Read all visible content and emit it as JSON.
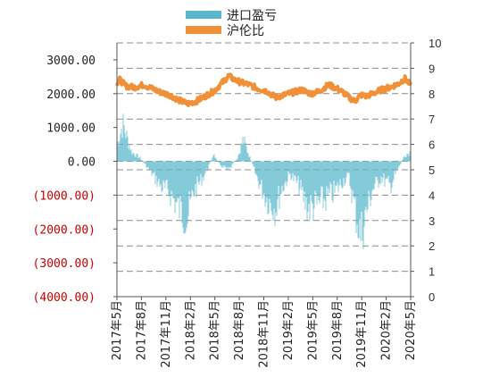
{
  "chart_data": {
    "type": "bar+line",
    "legend": [
      {
        "label": "进口盈亏",
        "color": "#5bb8cc",
        "kind": "bar"
      },
      {
        "label": "沪伦比",
        "color": "#f0913a",
        "kind": "line"
      }
    ],
    "left_axis": {
      "ticks": [
        {
          "value": 3000,
          "label": "3000.00",
          "color": "#222222"
        },
        {
          "value": 2000,
          "label": "2000.00",
          "color": "#222222"
        },
        {
          "value": 1000,
          "label": "1000.00",
          "color": "#222222"
        },
        {
          "value": 0,
          "label": "0.00",
          "color": "#222222"
        },
        {
          "value": -1000,
          "label": "(1000.00)",
          "color": "#cc0000"
        },
        {
          "value": -2000,
          "label": "(2000.00)",
          "color": "#cc0000"
        },
        {
          "value": -3000,
          "label": "(3000.00)",
          "color": "#cc0000"
        },
        {
          "value": -4000,
          "label": "(4000.00)",
          "color": "#cc0000"
        }
      ],
      "range": [
        -4000,
        3500
      ]
    },
    "right_axis": {
      "ticks": [
        "0",
        "1",
        "2",
        "3",
        "4",
        "5",
        "6",
        "7",
        "8",
        "9",
        "10"
      ],
      "range": [
        0,
        10
      ]
    },
    "x_ticks": [
      "2017年5月",
      "2017年8月",
      "2017年11月",
      "2018年2月",
      "2018年5月",
      "2018年8月",
      "2018年11月",
      "2019年2月",
      "2019年5月",
      "2019年8月",
      "2019年11月",
      "2020年2月",
      "2020年5月"
    ],
    "series": [
      {
        "name": "进口盈亏",
        "type": "bar",
        "color": "#5bb8cc",
        "anchors": [
          [
            0,
            500
          ],
          [
            0.02,
            1200
          ],
          [
            0.05,
            300
          ],
          [
            0.08,
            100
          ],
          [
            0.12,
            -400
          ],
          [
            0.15,
            -800
          ],
          [
            0.18,
            -1000
          ],
          [
            0.21,
            -1500
          ],
          [
            0.24,
            -1800
          ],
          [
            0.26,
            -1000
          ],
          [
            0.3,
            -400
          ],
          [
            0.33,
            200
          ],
          [
            0.35,
            -100
          ],
          [
            0.38,
            -300
          ],
          [
            0.41,
            100
          ],
          [
            0.43,
            700
          ],
          [
            0.45,
            200
          ],
          [
            0.48,
            -600
          ],
          [
            0.51,
            -1200
          ],
          [
            0.54,
            -1500
          ],
          [
            0.56,
            -900
          ],
          [
            0.59,
            -400
          ],
          [
            0.62,
            -800
          ],
          [
            0.65,
            -1500
          ],
          [
            0.68,
            -1400
          ],
          [
            0.71,
            -1200
          ],
          [
            0.74,
            -1000
          ],
          [
            0.77,
            -600
          ],
          [
            0.79,
            -500
          ],
          [
            0.81,
            -1500
          ],
          [
            0.83,
            -2400
          ],
          [
            0.85,
            -1600
          ],
          [
            0.87,
            -900
          ],
          [
            0.9,
            -500
          ],
          [
            0.93,
            -800
          ],
          [
            0.95,
            -400
          ],
          [
            0.98,
            200
          ],
          [
            1.0,
            300
          ]
        ]
      },
      {
        "name": "沪伦比",
        "type": "line",
        "color": "#f0913a",
        "anchors": [
          [
            0,
            8.4
          ],
          [
            0.01,
            8.55
          ],
          [
            0.03,
            8.3
          ],
          [
            0.06,
            8.25
          ],
          [
            0.09,
            8.35
          ],
          [
            0.12,
            8.2
          ],
          [
            0.15,
            8.05
          ],
          [
            0.18,
            7.95
          ],
          [
            0.21,
            7.75
          ],
          [
            0.24,
            7.6
          ],
          [
            0.27,
            7.7
          ],
          [
            0.3,
            7.9
          ],
          [
            0.33,
            8.1
          ],
          [
            0.36,
            8.45
          ],
          [
            0.38,
            8.7
          ],
          [
            0.4,
            8.55
          ],
          [
            0.42,
            8.45
          ],
          [
            0.45,
            8.35
          ],
          [
            0.48,
            8.2
          ],
          [
            0.51,
            8.1
          ],
          [
            0.54,
            7.85
          ],
          [
            0.57,
            7.95
          ],
          [
            0.6,
            8.05
          ],
          [
            0.63,
            8.15
          ],
          [
            0.66,
            8.0
          ],
          [
            0.69,
            8.1
          ],
          [
            0.72,
            8.35
          ],
          [
            0.75,
            8.2
          ],
          [
            0.77,
            8.05
          ],
          [
            0.79,
            7.85
          ],
          [
            0.81,
            7.7
          ],
          [
            0.83,
            7.95
          ],
          [
            0.85,
            7.9
          ],
          [
            0.87,
            8.0
          ],
          [
            0.9,
            8.15
          ],
          [
            0.93,
            8.25
          ],
          [
            0.96,
            8.4
          ],
          [
            0.98,
            8.6
          ],
          [
            1.0,
            8.35
          ]
        ]
      }
    ]
  }
}
